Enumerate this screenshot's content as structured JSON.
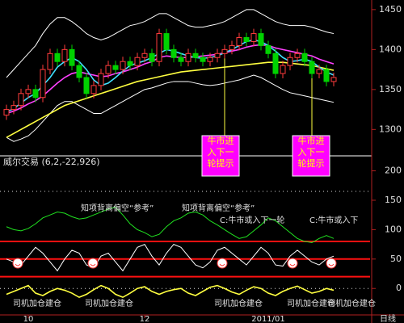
{
  "chart_data": [
    {
      "type": "candlestick",
      "categories": [
        null,
        null,
        null,
        "10",
        null,
        null,
        null,
        null,
        null,
        null,
        null,
        null,
        null,
        null,
        null,
        null,
        null,
        null,
        null,
        "12",
        null,
        null,
        null,
        null,
        null,
        null,
        null,
        null,
        null,
        null,
        null,
        null,
        null,
        null,
        null,
        null,
        "2011/01",
        null,
        null,
        null,
        null,
        null,
        null,
        null,
        null,
        null
      ],
      "period_label": "日线",
      "open": [
        1318,
        1325,
        1330,
        1345,
        1350,
        1340,
        1375,
        1395,
        1385,
        1400,
        1380,
        1365,
        1345,
        1355,
        1370,
        1380,
        1375,
        1385,
        1380,
        1390,
        1395,
        1385,
        1420,
        1400,
        1390,
        1385,
        1395,
        1390,
        1385,
        1390,
        1395,
        1400,
        1405,
        1415,
        1410,
        1420,
        1405,
        1395,
        1370,
        1380,
        1390,
        1395,
        1385,
        1370,
        1375,
        1360
      ],
      "high": [
        1331,
        1336,
        1351,
        1356,
        1356,
        1381,
        1401,
        1401,
        1406,
        1406,
        1386,
        1371,
        1361,
        1376,
        1386,
        1386,
        1391,
        1391,
        1396,
        1401,
        1401,
        1426,
        1426,
        1406,
        1396,
        1401,
        1401,
        1396,
        1396,
        1401,
        1406,
        1411,
        1421,
        1421,
        1426,
        1426,
        1411,
        1401,
        1386,
        1396,
        1401,
        1401,
        1391,
        1381,
        1381,
        1371
      ],
      "low": [
        1312,
        1319,
        1324,
        1339,
        1334,
        1334,
        1369,
        1379,
        1379,
        1374,
        1359,
        1339,
        1339,
        1349,
        1364,
        1369,
        1369,
        1374,
        1374,
        1384,
        1379,
        1379,
        1394,
        1384,
        1379,
        1379,
        1384,
        1379,
        1379,
        1384,
        1389,
        1394,
        1399,
        1404,
        1404,
        1399,
        1389,
        1364,
        1364,
        1374,
        1384,
        1379,
        1364,
        1364,
        1354,
        1354
      ],
      "close": [
        1325,
        1330,
        1345,
        1350,
        1340,
        1375,
        1395,
        1385,
        1400,
        1380,
        1365,
        1345,
        1355,
        1370,
        1380,
        1375,
        1385,
        1380,
        1390,
        1395,
        1385,
        1420,
        1400,
        1390,
        1385,
        1395,
        1390,
        1385,
        1390,
        1395,
        1400,
        1405,
        1415,
        1410,
        1420,
        1405,
        1395,
        1370,
        1380,
        1390,
        1395,
        1385,
        1370,
        1375,
        1360,
        1365
      ],
      "up_color": "#ff3c3c",
      "down_color": "#00d200",
      "series": [
        {
          "color": "#ffffff",
          "values": [
            1365,
            1375,
            1385,
            1395,
            1405,
            1420,
            1432,
            1440,
            1440,
            1435,
            1428,
            1420,
            1415,
            1412,
            1415,
            1420,
            1425,
            1430,
            1432,
            1435,
            1440,
            1445,
            1445,
            1440,
            1435,
            1430,
            1428,
            1428,
            1430,
            1432,
            1435,
            1440,
            1445,
            1450,
            1450,
            1445,
            1440,
            1435,
            1432,
            1430,
            1430,
            1430,
            1428,
            1425,
            1422,
            1420
          ]
        },
        {
          "color": "#ffffff",
          "values": [
            1290,
            1285,
            1288,
            1292,
            1300,
            1310,
            1320,
            1330,
            1335,
            1335,
            1330,
            1325,
            1320,
            1320,
            1325,
            1330,
            1335,
            1340,
            1345,
            1350,
            1352,
            1355,
            1358,
            1360,
            1360,
            1360,
            1358,
            1356,
            1355,
            1356,
            1358,
            1360,
            1362,
            1365,
            1368,
            1365,
            1360,
            1355,
            1350,
            1346,
            1344,
            1342,
            1340,
            1338,
            1336,
            1334
          ]
        },
        {
          "color": "#ffff40",
          "values": [
            1290,
            1295,
            1300,
            1305,
            1310,
            1315,
            1320,
            1325,
            1330,
            1333,
            1336,
            1339,
            1342,
            1345,
            1348,
            1351,
            1354,
            1357,
            1360,
            1362,
            1364,
            1366,
            1368,
            1370,
            1372,
            1373,
            1374,
            1375,
            1376,
            1377,
            1378,
            1379,
            1380,
            1381,
            1382,
            1383,
            1384,
            1384,
            1384,
            1383,
            1382,
            1381,
            1380,
            1378,
            1376,
            1374
          ]
        },
        {
          "color": "#ff40ff",
          "values": [
            1320,
            1323,
            1327,
            1332,
            1336,
            1342,
            1350,
            1358,
            1365,
            1370,
            1372,
            1370,
            1368,
            1366,
            1367,
            1370,
            1372,
            1375,
            1378,
            1382,
            1385,
            1390,
            1392,
            1391,
            1390,
            1390,
            1391,
            1392,
            1393,
            1394,
            1396,
            1398,
            1400,
            1403,
            1405,
            1406,
            1405,
            1402,
            1400,
            1398,
            1396,
            1394,
            1392,
            1388,
            1385,
            1382
          ]
        },
        {
          "color": "#40e0ff",
          "values": [
            1322,
            1326,
            1333,
            1340,
            1345,
            1355,
            1365,
            1378,
            1385,
            1390,
            1385,
            1375,
            1362,
            1355,
            1358,
            1365,
            1373,
            1380,
            1383,
            1386,
            1390,
            1395,
            1400,
            1398,
            1395,
            1392,
            1390,
            1389,
            1390,
            1392,
            1396,
            1400,
            1405,
            1410,
            1412,
            1410,
            1405,
            1398,
            1390,
            1385,
            1386,
            1388,
            1385,
            1378,
            1372,
            1368
          ]
        }
      ],
      "annotations": [
        "牛市进入下一轮提示",
        "牛市进入下一轮提示"
      ],
      "ylim": [
        1268,
        1462
      ],
      "yticks": [
        1300,
        1350,
        1400,
        1450
      ]
    },
    {
      "type": "line",
      "title": "威尔交易 (6,2,-22,926)",
      "series": [
        {
          "color": "#20e020",
          "values": [
            105,
            100,
            98,
            102,
            110,
            120,
            125,
            130,
            128,
            122,
            118,
            120,
            125,
            130,
            135,
            138,
            125,
            110,
            100,
            95,
            88,
            92,
            105,
            115,
            120,
            128,
            130,
            125,
            115,
            108,
            100,
            92,
            85,
            88,
            98,
            108,
            120,
            115,
            105,
            95,
            85,
            80,
            78,
            85,
            90,
            85
          ]
        },
        {
          "color": "#ffffff",
          "values": [
            50,
            45,
            40,
            55,
            70,
            60,
            45,
            30,
            50,
            65,
            60,
            40,
            35,
            55,
            60,
            45,
            30,
            50,
            70,
            75,
            55,
            40,
            60,
            75,
            70,
            55,
            40,
            35,
            45,
            65,
            70,
            60,
            50,
            40,
            55,
            70,
            60,
            40,
            38,
            55,
            65,
            55,
            45,
            40,
            50,
            55
          ]
        },
        {
          "color": "#ffff40",
          "values": [
            -10,
            -5,
            0,
            5,
            -8,
            -12,
            -5,
            0,
            -3,
            -8,
            -15,
            -10,
            -2,
            5,
            0,
            -10,
            -15,
            -8,
            0,
            3,
            -5,
            -10,
            -5,
            -2,
            0,
            -8,
            -12,
            -5,
            2,
            5,
            0,
            -6,
            -10,
            -3,
            3,
            0,
            -8,
            -12,
            -5,
            0,
            4,
            -2,
            -8,
            -5,
            0,
            -3
          ]
        }
      ],
      "reference_lines": {
        "color": "#ff1010",
        "values": [
          80,
          50,
          20
        ]
      },
      "dotted_lines": [
        165,
        0
      ],
      "annotations": [
        "知项背离偏空“参考”",
        "知项背离偏空“参考”",
        "C:牛市或入下一轮",
        "C:牛市或入下",
        "司机加仓建仓",
        "司机加仓建仓",
        "司机加仓建仓",
        "司机加仓建仓",
        "司机加仓建仓"
      ],
      "ylim": [
        -45,
        220
      ],
      "yticks": [
        0,
        50,
        100,
        150,
        200
      ]
    }
  ]
}
